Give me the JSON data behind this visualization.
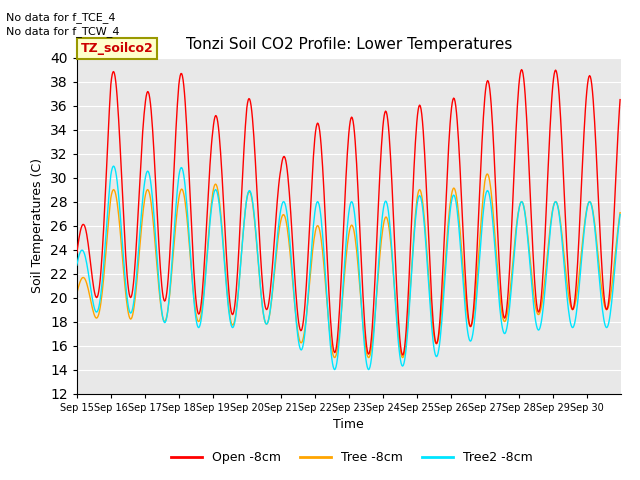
{
  "title": "Tonzi Soil CO2 Profile: Lower Temperatures",
  "ylabel": "Soil Temperatures (C)",
  "xlabel": "Time",
  "annotations": [
    "No data for f_TCE_4",
    "No data for f_TCW_4"
  ],
  "legend_box_label": "TZ_soilco2",
  "ylim": [
    12,
    40
  ],
  "yticks": [
    12,
    14,
    16,
    18,
    20,
    22,
    24,
    26,
    28,
    30,
    32,
    34,
    36,
    38,
    40
  ],
  "x_labels": [
    "Sep 15",
    "Sep 16",
    "Sep 17",
    "Sep 18",
    "Sep 19",
    "Sep 20",
    "Sep 21",
    "Sep 22",
    "Sep 23",
    "Sep 24",
    "Sep 25",
    "Sep 26",
    "Sep 27",
    "Sep 28",
    "Sep 29",
    "Sep 30"
  ],
  "n_days": 16,
  "series": {
    "Open -8cm": {
      "color": "#ff0000"
    },
    "Tree -8cm": {
      "color": "#ffa500"
    },
    "Tree2 -8cm": {
      "color": "#00e5ff"
    }
  },
  "bg_color": "#e8e8e8",
  "fig_bg": "#ffffff",
  "grid_color": "#ffffff",
  "line_width": 1.0,
  "red_max": [
    24,
    39,
    37,
    39,
    35,
    37,
    31.5,
    34.5,
    35,
    35.5,
    36,
    36.5,
    38,
    39,
    39,
    38.5
  ],
  "red_min": [
    20,
    20,
    20,
    19.5,
    18,
    19,
    19,
    16,
    15,
    15.5,
    15,
    17,
    18,
    18.5,
    19,
    19
  ],
  "ora_max": [
    20.5,
    29,
    29,
    29,
    29.5,
    29,
    27,
    26,
    26,
    26.5,
    29,
    29,
    30.5,
    28,
    28,
    28
  ],
  "ora_min": [
    18,
    18.5,
    18,
    18,
    18,
    17.5,
    18,
    15,
    15,
    15,
    15,
    17,
    18,
    18,
    19,
    19
  ],
  "cya_max": [
    23,
    31,
    30.5,
    31,
    29,
    29,
    28,
    28,
    28,
    28,
    28.5,
    28.5,
    29,
    28,
    28,
    28
  ],
  "cya_min": [
    18.5,
    19,
    18.5,
    17.5,
    17.5,
    17.5,
    18,
    14,
    14,
    14,
    14.5,
    15.5,
    17,
    17,
    17.5,
    17.5
  ],
  "phase_peak": 0.583
}
